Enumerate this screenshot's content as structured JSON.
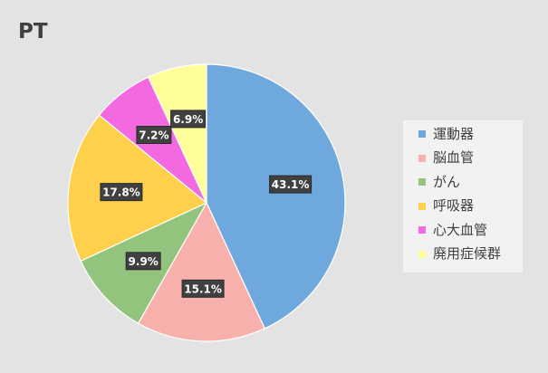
{
  "chart_data": {
    "type": "pie",
    "title": "PT",
    "categories": [
      "運動器",
      "脳血管",
      "がん",
      "呼吸器",
      "心大血管",
      "廃用症候群"
    ],
    "values": [
      43.1,
      15.1,
      9.9,
      17.8,
      7.2,
      6.9
    ],
    "data_labels": [
      "43.1%",
      "15.1%",
      "9.9%",
      "17.8%",
      "7.2%",
      "6.9%"
    ],
    "colors": [
      "#6fa8dc",
      "#f8b0ad",
      "#93c47d",
      "#ffd04b",
      "#f36ae0",
      "#ffff99"
    ],
    "legend_position": "right",
    "data_label_style": "dark-box"
  }
}
